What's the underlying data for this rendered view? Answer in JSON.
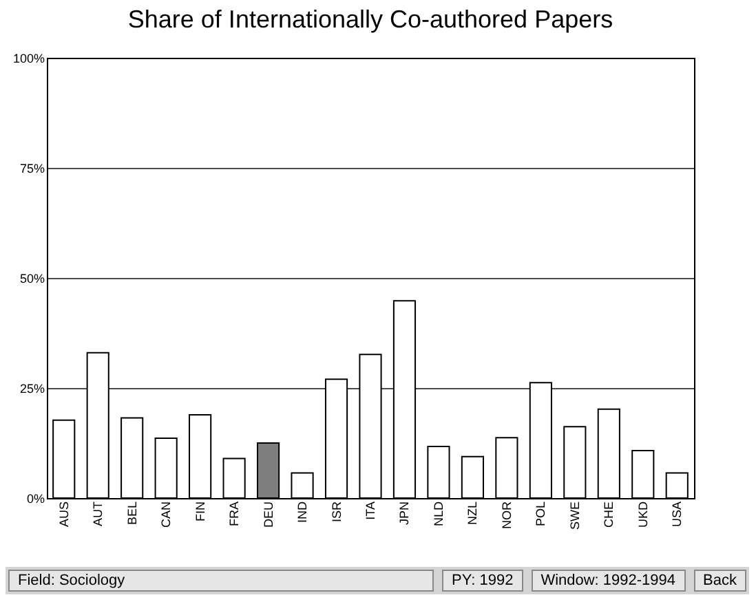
{
  "chart_data": {
    "type": "bar",
    "title": "Share of Internationally Co-authored Papers",
    "categories": [
      "AUS",
      "AUT",
      "BEL",
      "CAN",
      "FIN",
      "FRA",
      "DEU",
      "IND",
      "ISR",
      "ITA",
      "JPN",
      "NLD",
      "NZL",
      "NOR",
      "POL",
      "SWE",
      "CHE",
      "UKD",
      "USA"
    ],
    "values": [
      17.7,
      33.0,
      18.2,
      13.6,
      18.9,
      9.0,
      12.5,
      5.7,
      27.0,
      32.6,
      44.8,
      11.7,
      9.4,
      13.7,
      26.2,
      16.2,
      20.2,
      10.8,
      5.7
    ],
    "colors": [
      "#ffffff",
      "#ffffff",
      "#ffffff",
      "#ffffff",
      "#ffffff",
      "#ffffff",
      "#7f7f7f",
      "#ffffff",
      "#ffffff",
      "#ffffff",
      "#ffffff",
      "#ffffff",
      "#ffffff",
      "#ffffff",
      "#ffffff",
      "#ffffff",
      "#ffffff",
      "#ffffff",
      "#ffffff"
    ],
    "ylim": [
      0,
      100
    ],
    "yticks": [
      {
        "value": 0,
        "label": "0%"
      },
      {
        "value": 25,
        "label": "25%"
      },
      {
        "value": 50,
        "label": "50%"
      },
      {
        "value": 75,
        "label": "75%"
      },
      {
        "value": 100,
        "label": "100%"
      }
    ],
    "grid": true,
    "annotations": [
      "Field: Sociology",
      "PY: 1992",
      "Window: 1992-1994",
      "Back"
    ]
  }
}
